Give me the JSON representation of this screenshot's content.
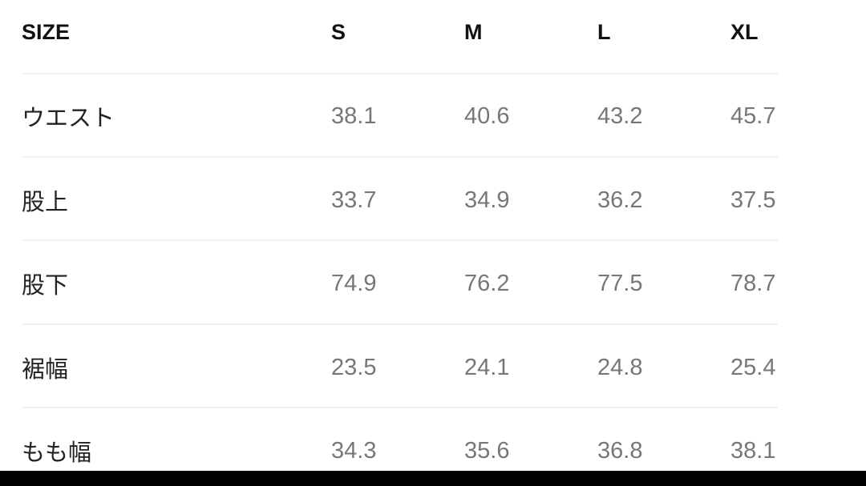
{
  "header": {
    "label": "SIZE",
    "sizes": [
      "S",
      "M",
      "L",
      "XL"
    ]
  },
  "rows": [
    {
      "label": "ウエスト",
      "values": [
        "38.1",
        "40.6",
        "43.2",
        "45.7"
      ]
    },
    {
      "label": "股上",
      "values": [
        "33.7",
        "34.9",
        "36.2",
        "37.5"
      ]
    },
    {
      "label": "股下",
      "values": [
        "74.9",
        "76.2",
        "77.5",
        "78.7"
      ]
    },
    {
      "label": "裾幅",
      "values": [
        "23.5",
        "24.1",
        "24.8",
        "25.4"
      ]
    },
    {
      "label": "もも幅",
      "values": [
        "34.3",
        "35.6",
        "36.8",
        "38.1"
      ]
    }
  ]
}
